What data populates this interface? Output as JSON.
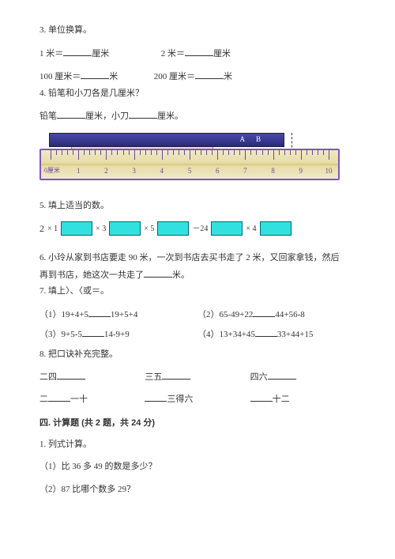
{
  "q3": {
    "title": "3. 单位换算。",
    "rows": [
      {
        "a_left": "1 米＝",
        "a_unit": "厘米",
        "b_left": "2 米＝",
        "b_unit": "厘米"
      },
      {
        "a_left": "100 厘米＝",
        "a_unit": "米",
        "b_left": "200 厘米＝",
        "b_unit": "米"
      }
    ]
  },
  "q4": {
    "title": "4. 铅笔和小刀各是几厘米？",
    "line": {
      "pencil": "铅笔",
      "cm1": "厘米，",
      "knife": "小刀",
      "cm2": "厘米。"
    },
    "obj_labels": {
      "a": "A",
      "b": "B"
    },
    "ruler": {
      "zero_label": "0厘米",
      "ticks": [
        "1",
        "2",
        "3",
        "4",
        "5",
        "6",
        "7",
        "8",
        "9",
        "10"
      ],
      "border_color": "#7a5ab8",
      "face_colors": [
        "#f0e8c8",
        "#e8dca8",
        "#d8c878"
      ],
      "tick_color": "#6a4a98"
    }
  },
  "q5": {
    "title": "5. 填上适当的数。",
    "chain": {
      "start": "2",
      "ops": [
        "× 1",
        "× 3",
        "× 5",
        "－24",
        "× 4"
      ],
      "box_color": "#33e0e0",
      "box_border": "#067"
    }
  },
  "q6": {
    "text_a": "6. 小玲从家到书店要走 90 米，一次到书店去买书走了 2 米，又回家拿钱，然后",
    "text_b": "再到书店，她这次一共走了",
    "text_c": "米。"
  },
  "q7": {
    "title": "7. 填上〉、〈或＝。",
    "items": [
      {
        "n": "（1）",
        "l": "19+4+5",
        "r": "19+5+4"
      },
      {
        "n": "（2）",
        "l": "65-49+22",
        "r": "44+56-8"
      },
      {
        "n": "（3）",
        "l": "9+5-5",
        "r": "14-9+9"
      },
      {
        "n": "（4）",
        "l": "13+34+45",
        "r": "33+44+15"
      }
    ]
  },
  "q8": {
    "title": "8. 把口诀补充完整。",
    "row1": [
      {
        "a": "二四",
        "b": ""
      },
      {
        "a": "三五",
        "b": ""
      },
      {
        "a": "四六",
        "b": ""
      }
    ],
    "row2": [
      {
        "a": "二",
        "b": "一十"
      },
      {
        "a": "",
        "b": "三得六"
      },
      {
        "a": "",
        "b": "十二"
      }
    ]
  },
  "section4": {
    "title": "四. 计算题 (共 2 题，共 24 分)",
    "q1": "1. 列式计算。",
    "s1": "（1）比 36 多 49 的数是多少？",
    "s2": "（2）87 比哪个数多 29？"
  }
}
